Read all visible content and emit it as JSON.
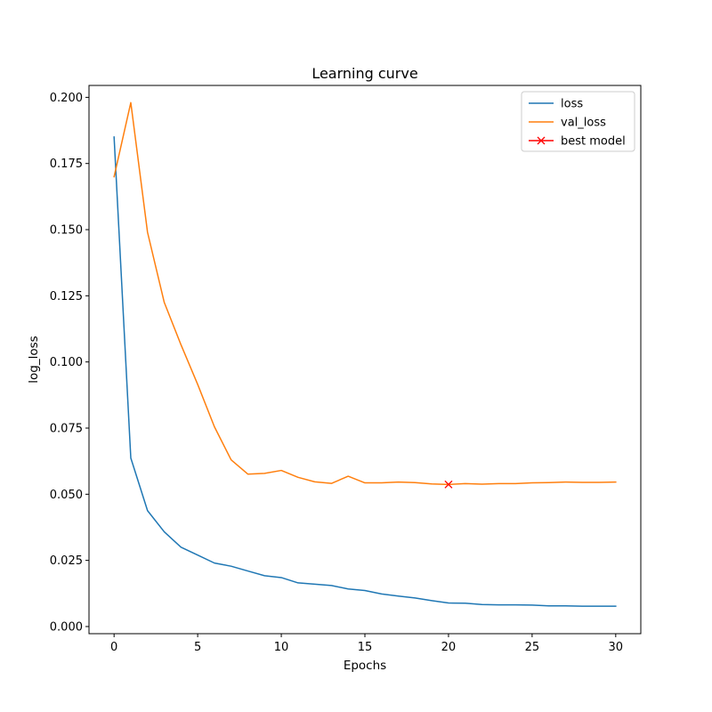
{
  "chart_data": {
    "type": "line",
    "title": "Learning curve",
    "xlabel": "Epochs",
    "ylabel": "log_loss",
    "xlim": [
      -1.5,
      31.5
    ],
    "ylim": [
      -0.0027,
      0.2045
    ],
    "x_ticks": [
      0,
      5,
      10,
      15,
      20,
      25,
      30
    ],
    "x_tick_labels": [
      "0",
      "5",
      "10",
      "15",
      "20",
      "25",
      "30"
    ],
    "y_ticks": [
      0.0,
      0.025,
      0.05,
      0.075,
      0.1,
      0.125,
      0.15,
      0.175,
      0.2
    ],
    "y_tick_labels": [
      "0.000",
      "0.025",
      "0.050",
      "0.075",
      "0.100",
      "0.125",
      "0.150",
      "0.175",
      "0.200"
    ],
    "grid": false,
    "legend_position": "top-right",
    "x": [
      0,
      1,
      2,
      3,
      4,
      5,
      6,
      7,
      8,
      9,
      10,
      11,
      12,
      13,
      14,
      15,
      16,
      17,
      18,
      19,
      20,
      21,
      22,
      23,
      24,
      25,
      26,
      27,
      28,
      29,
      30
    ],
    "series": [
      {
        "name": "loss",
        "color": "#1f77b4",
        "values": [
          0.185,
          0.0637,
          0.0438,
          0.0358,
          0.03,
          0.027,
          0.024,
          0.0228,
          0.021,
          0.0192,
          0.0185,
          0.0165,
          0.016,
          0.0155,
          0.0142,
          0.0136,
          0.0123,
          0.0115,
          0.0108,
          0.0098,
          0.0089,
          0.0088,
          0.0083,
          0.0082,
          0.0082,
          0.0081,
          0.0078,
          0.0078,
          0.0077,
          0.0077,
          0.0077
        ]
      },
      {
        "name": "val_loss",
        "color": "#ff7f0e",
        "values": [
          0.17,
          0.198,
          0.149,
          0.1225,
          0.1065,
          0.0915,
          0.0755,
          0.063,
          0.0576,
          0.0579,
          0.059,
          0.0564,
          0.0547,
          0.0541,
          0.0568,
          0.0543,
          0.0543,
          0.0546,
          0.0544,
          0.0539,
          0.0537,
          0.054,
          0.0538,
          0.054,
          0.054,
          0.0543,
          0.0544,
          0.0546,
          0.0545,
          0.0545,
          0.0546
        ]
      }
    ],
    "markers": [
      {
        "name": "best model",
        "color": "#ff0000",
        "x": 20,
        "y": 0.0537,
        "symbol": "x"
      }
    ]
  }
}
